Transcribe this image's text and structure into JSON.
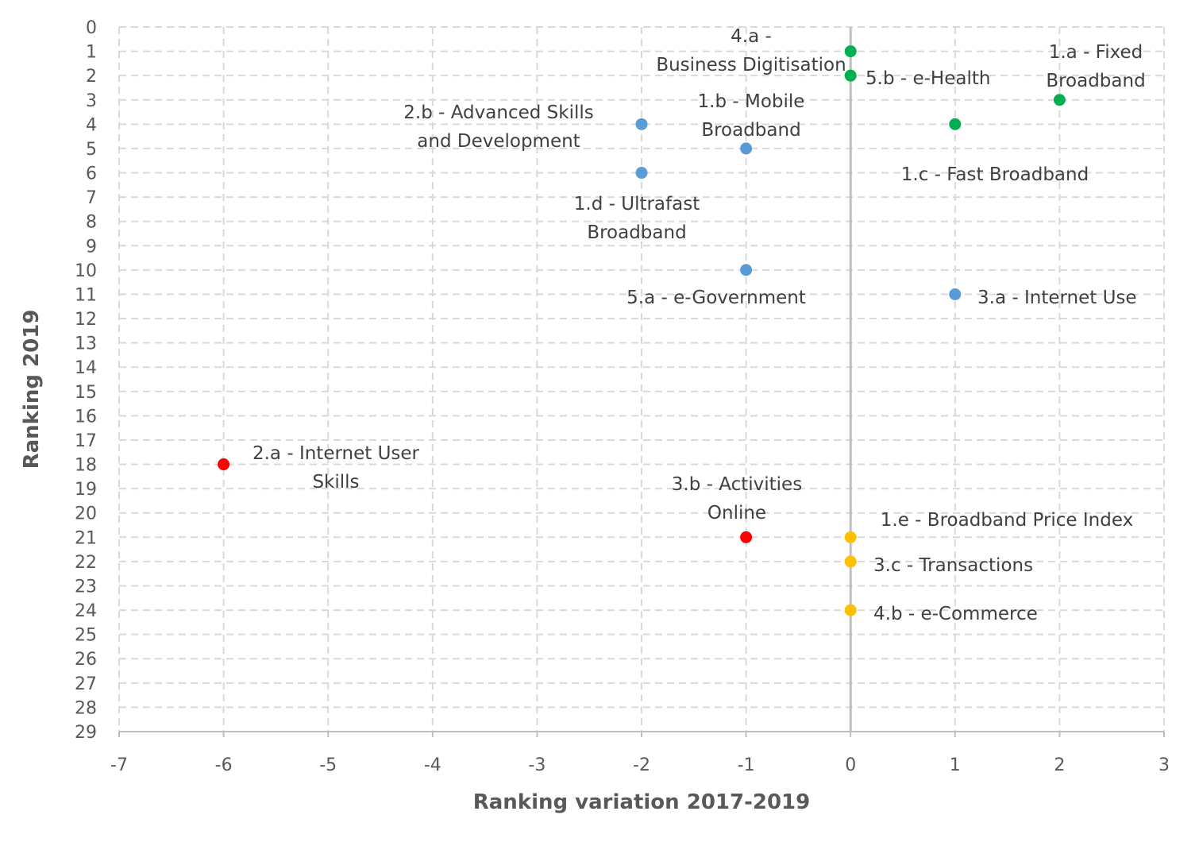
{
  "chart_data": {
    "type": "scatter",
    "title": "",
    "xlabel": "Ranking variation 2017-2019",
    "ylabel": "Ranking 2019",
    "xlim": [
      -7,
      3
    ],
    "ylim": [
      0,
      29
    ],
    "y_inverted": true,
    "grid": true,
    "grid_style": "dashed",
    "x_ticks": [
      "-7",
      "-6",
      "-5",
      "-4",
      "-3",
      "-2",
      "-1",
      "0",
      "1",
      "2",
      "3"
    ],
    "y_ticks": [
      "0",
      "1",
      "2",
      "3",
      "4",
      "5",
      "6",
      "7",
      "8",
      "9",
      "10",
      "11",
      "12",
      "13",
      "14",
      "15",
      "16",
      "17",
      "18",
      "19",
      "20",
      "21",
      "22",
      "23",
      "24",
      "25",
      "26",
      "27",
      "28",
      "29"
    ],
    "colors": {
      "green": "#00B050",
      "blue": "#5B9BD5",
      "red": "#FF0000",
      "yellow": "#FFC000"
    },
    "points": [
      {
        "label": "4.a - Business Digitisation",
        "x": 0,
        "y": 1,
        "color": "green"
      },
      {
        "label": "5.b - e-Health",
        "x": 0,
        "y": 2,
        "color": "green"
      },
      {
        "label": "1.a - Fixed Broadband",
        "x": 2,
        "y": 3,
        "color": "green"
      },
      {
        "label": "1.c - Fast Broadband",
        "x": 1,
        "y": 4,
        "color": "green"
      },
      {
        "label": "2.b - Advanced Skills and Development",
        "x": -2,
        "y": 4,
        "color": "blue"
      },
      {
        "label": "1.b - Mobile Broadband",
        "x": -1,
        "y": 5,
        "color": "blue"
      },
      {
        "label": "1.d - Ultrafast Broadband",
        "x": -2,
        "y": 6,
        "color": "blue"
      },
      {
        "label": "5.a - e-Government",
        "x": -1,
        "y": 10,
        "color": "blue"
      },
      {
        "label": "3.a - Internet Use",
        "x": 1,
        "y": 11,
        "color": "blue"
      },
      {
        "label": "2.a - Internet User Skills",
        "x": -6,
        "y": 18,
        "color": "red"
      },
      {
        "label": "3.b - Activities Online",
        "x": -1,
        "y": 21,
        "color": "red"
      },
      {
        "label": "1.e - Broadband Price Index",
        "x": 0,
        "y": 21,
        "color": "yellow"
      },
      {
        "label": "3.c - Transactions",
        "x": 0,
        "y": 22,
        "color": "yellow"
      },
      {
        "label": "4.b - e-Commerce",
        "x": 0,
        "y": 24,
        "color": "yellow"
      }
    ]
  }
}
